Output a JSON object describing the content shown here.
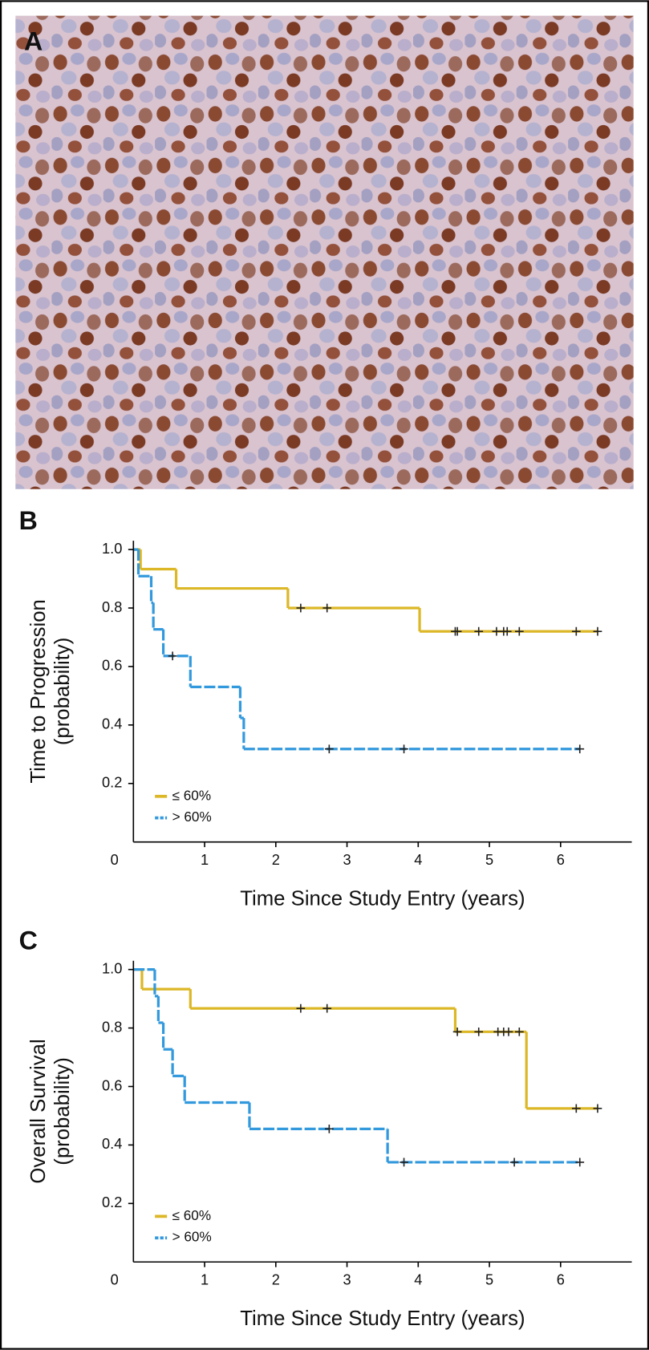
{
  "image_panel": {
    "label": "A"
  },
  "chart_data": [
    {
      "type": "step",
      "panel_label": "B",
      "xlabel": "Time Since Study Entry (years)",
      "ylabel": [
        "Time to Progression",
        "(probability)"
      ],
      "xlim": [
        0,
        7
      ],
      "ylim": [
        0,
        1.03
      ],
      "xticks": [
        0,
        1,
        2,
        3,
        4,
        5,
        6
      ],
      "yticks": [
        {
          "value": 0.2,
          "label": "0.2"
        },
        {
          "value": 0.4,
          "label": "0.4"
        },
        {
          "value": 0.6,
          "label": "0.6"
        },
        {
          "value": 0.8,
          "label": "0.8"
        },
        {
          "value": 1.0,
          "label": "1.0"
        }
      ],
      "legend": "lower left",
      "series": [
        {
          "name": "≤ 60%",
          "color": "#dcb726",
          "dashed": false,
          "x": [
            0,
            0.1,
            0.6,
            2.17,
            4.02
          ],
          "values": [
            1.0,
            0.933,
            0.867,
            0.8,
            0.72
          ],
          "censored": {
            "x": [
              2.35,
              2.72,
              4.52,
              4.55,
              4.85,
              5.1,
              5.2,
              5.25,
              5.42,
              6.22,
              6.52
            ],
            "values": [
              0.8,
              0.8,
              0.72,
              0.72,
              0.72,
              0.72,
              0.72,
              0.72,
              0.72,
              0.72,
              0.72
            ]
          }
        },
        {
          "name": "> 60%",
          "color": "#3399dd",
          "dashed": true,
          "x": [
            0,
            0.07,
            0.25,
            0.28,
            0.42,
            0.8,
            1.5,
            1.55
          ],
          "values": [
            1.0,
            0.909,
            0.818,
            0.727,
            0.636,
            0.53,
            0.424,
            0.318
          ],
          "censored": {
            "x": [
              0.55,
              2.75,
              3.8,
              6.27
            ],
            "values": [
              0.636,
              0.318,
              0.318,
              0.318
            ]
          }
        }
      ]
    },
    {
      "type": "step",
      "panel_label": "C",
      "xlabel": "Time Since Study Entry (years)",
      "ylabel": [
        "Overall Survival",
        "(probability)"
      ],
      "xlim": [
        0,
        7
      ],
      "ylim": [
        0,
        1.03
      ],
      "xticks": [
        0,
        1,
        2,
        3,
        4,
        5,
        6
      ],
      "yticks": [
        {
          "value": 0.2,
          "label": "0.2"
        },
        {
          "value": 0.4,
          "label": "0.4"
        },
        {
          "value": 0.6,
          "label": "0.6"
        },
        {
          "value": 0.8,
          "label": "0.8"
        },
        {
          "value": 1.0,
          "label": "1.0"
        }
      ],
      "legend": "lower left",
      "series": [
        {
          "name": "≤ 60%",
          "color": "#dcb726",
          "dashed": false,
          "x": [
            0,
            0.12,
            0.8,
            4.52,
            5.52
          ],
          "values": [
            1.0,
            0.933,
            0.867,
            0.787,
            0.525
          ],
          "censored": {
            "x": [
              2.35,
              2.72,
              4.55,
              4.85,
              5.12,
              5.2,
              5.27,
              5.42,
              6.22,
              6.52
            ],
            "values": [
              0.867,
              0.867,
              0.787,
              0.787,
              0.787,
              0.787,
              0.787,
              0.787,
              0.525,
              0.525
            ]
          }
        },
        {
          "name": "> 60%",
          "color": "#3399dd",
          "dashed": true,
          "x": [
            0,
            0.3,
            0.35,
            0.42,
            0.55,
            0.72,
            1.63,
            3.57
          ],
          "values": [
            1.0,
            0.909,
            0.818,
            0.727,
            0.636,
            0.545,
            0.455,
            0.341
          ],
          "censored": {
            "x": [
              2.75,
              3.8,
              5.35,
              6.27
            ],
            "values": [
              0.455,
              0.341,
              0.341,
              0.341
            ]
          }
        }
      ]
    }
  ]
}
